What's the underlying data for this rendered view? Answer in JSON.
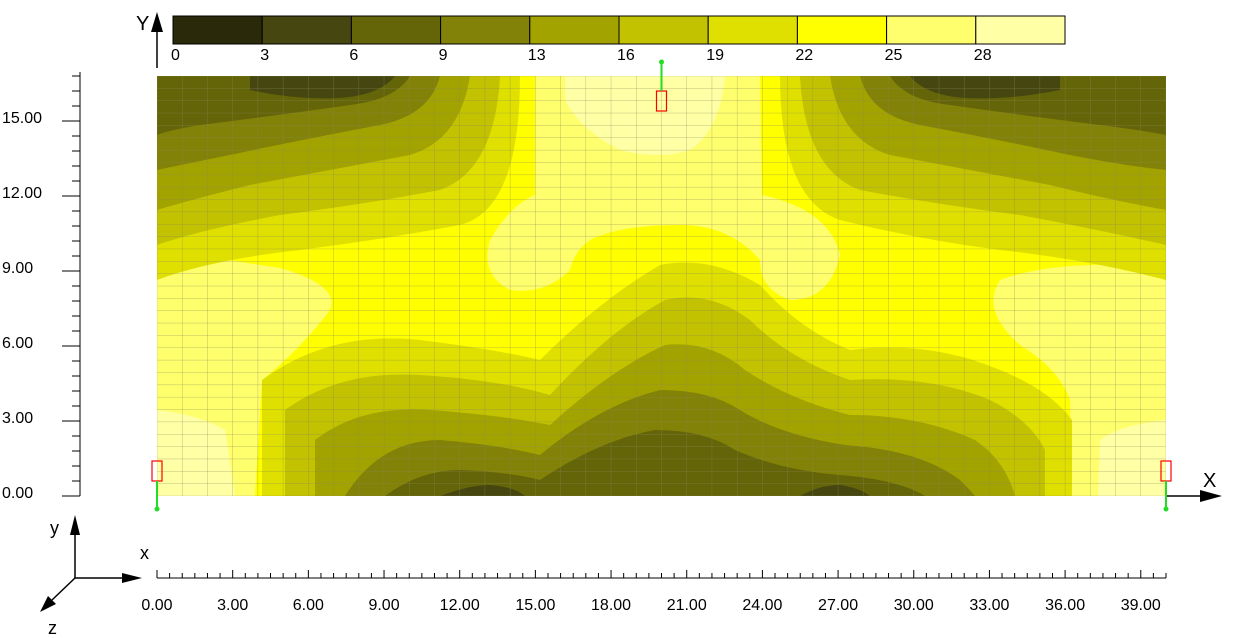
{
  "legend": {
    "labels": [
      "0",
      "3",
      "6",
      "9",
      "13",
      "16",
      "19",
      "22",
      "25",
      "28"
    ],
    "colors": [
      "#2a2a0b",
      "#464611",
      "#646409",
      "#828208",
      "#a3a300",
      "#c2c200",
      "#e0e000",
      "#ffff00",
      "#ffff6e",
      "#ffffa6"
    ]
  },
  "axes": {
    "x_axis_label": "X",
    "y_axis_label": "Y",
    "x_ticks": [
      "0.00",
      "3.00",
      "6.00",
      "9.00",
      "12.00",
      "15.00",
      "18.00",
      "21.00",
      "24.00",
      "27.00",
      "30.00",
      "33.00",
      "36.00",
      "39.00"
    ],
    "y_ticks": [
      "0.00",
      "3.00",
      "6.00",
      "9.00",
      "12.00",
      "15.00"
    ],
    "x_range": [
      0,
      40
    ],
    "y_range": [
      0,
      16.8
    ]
  },
  "triad": {
    "x": "x",
    "y": "y",
    "z": "z"
  },
  "supports": [
    {
      "name": "top-support",
      "x": 20,
      "y": 15.8,
      "direction": "up"
    },
    {
      "name": "bottom-left-support",
      "x": 0,
      "y": 1,
      "direction": "down"
    },
    {
      "name": "bottom-right-support",
      "x": 40,
      "y": 1,
      "direction": "down"
    }
  ]
}
